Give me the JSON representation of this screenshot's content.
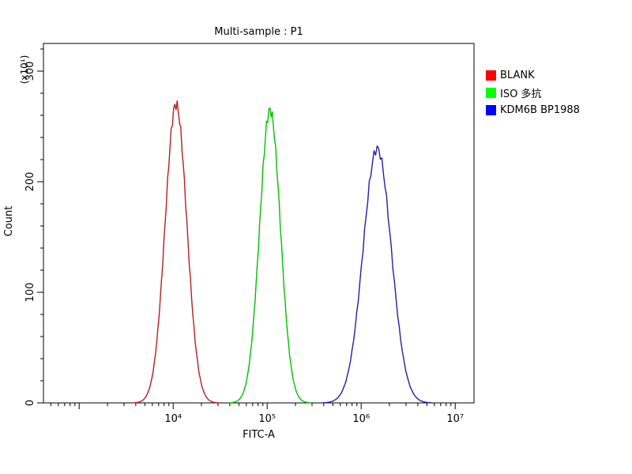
{
  "chart_data": {
    "type": "line",
    "subtype": "flow-cytometry-histogram-overlay",
    "title": "Multi-sample : P1",
    "xlabel": "FITC-A",
    "ylabel": "Count",
    "y_unit_label": "(x10¹)",
    "x_scale": "log",
    "xlim_log": [
      2.62,
      7.2
    ],
    "ylim": [
      0,
      325
    ],
    "x_major_logs": [
      3,
      4,
      5,
      6,
      7
    ],
    "x_ticks": [
      {
        "log": 4,
        "label": "10⁴"
      },
      {
        "log": 5,
        "label": "10⁵"
      },
      {
        "log": 6,
        "label": "10⁶"
      },
      {
        "log": 7,
        "label": "10⁷"
      }
    ],
    "y_ticks": [
      0,
      100,
      200,
      300
    ],
    "y_minor_step": 20,
    "grid": false,
    "legend_position": "right-outside",
    "series": [
      {
        "name": "BLANK",
        "color": "#ff0000",
        "curve_color": "#b42020",
        "peak_center": 11000,
        "peak_center_log": 4.03,
        "peak_height": 270,
        "sigma_log": 0.115
      },
      {
        "name": "ISO 多抗",
        "color": "#00ff00",
        "curve_color": "#00c000",
        "peak_center": 110000,
        "peak_center_log": 5.03,
        "peak_height": 265,
        "sigma_log": 0.11
      },
      {
        "name": "KDM6B BP1988",
        "color": "#0000ff",
        "curve_color": "#2020a8",
        "peak_center": 1500000,
        "peak_center_log": 6.17,
        "peak_height": 230,
        "sigma_log": 0.15
      }
    ]
  }
}
